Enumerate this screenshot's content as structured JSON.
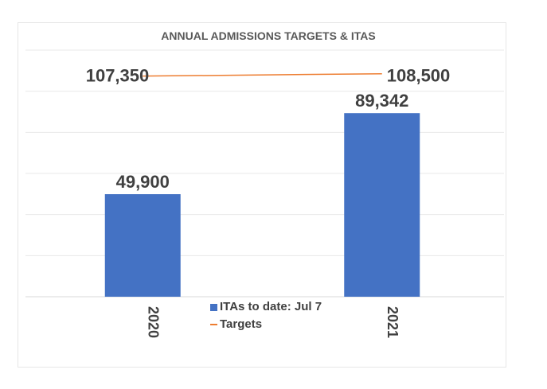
{
  "chart_data": {
    "type": "bar",
    "title": "ANNUAL ADMISSIONS TARGETS & ITAS",
    "categories": [
      "2020",
      "2021"
    ],
    "series": [
      {
        "name": "ITAs to date: Jul 7",
        "type": "bar",
        "values": [
          49900,
          89342
        ],
        "labels": [
          "49,900",
          "89,342"
        ],
        "color": "#4472C4"
      },
      {
        "name": "Targets",
        "type": "line",
        "values": [
          107350,
          108500
        ],
        "labels": [
          "107,350",
          "108,500"
        ],
        "color": "#ED7D31"
      }
    ],
    "ylim": [
      0,
      120000
    ],
    "grid": true,
    "legend_position": "bottom-center",
    "tick_label_rotation": "vertical",
    "colors": {
      "bar": "#4472C4",
      "line": "#ED7D31",
      "grid": "#e8e8e8",
      "text": "#404040"
    }
  }
}
